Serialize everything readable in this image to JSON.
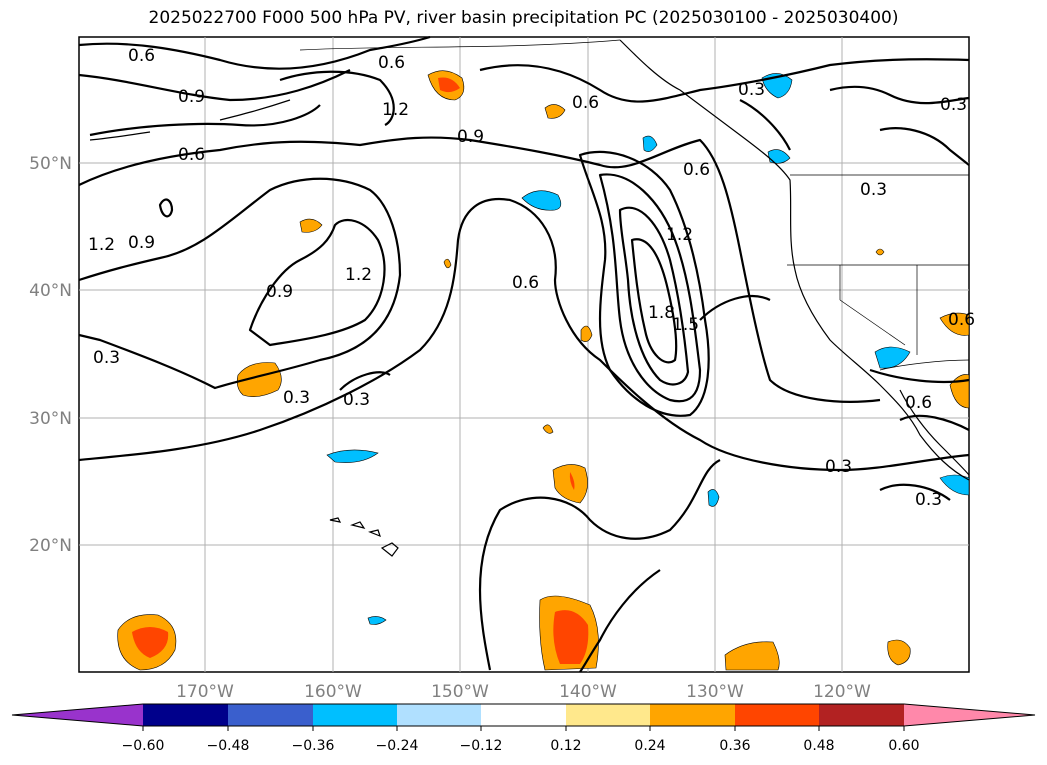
{
  "title": "2025022700 F000 500 hPa PV, river basin precipitation PC (2025030100 - 2025030400)",
  "map": {
    "lat_labels": [
      "50°N",
      "40°N",
      "30°N",
      "20°N"
    ],
    "lon_labels": [
      "170°W",
      "160°W",
      "150°W",
      "140°W",
      "130°W",
      "120°W"
    ],
    "contour_labels": [
      "0.6",
      "0.6",
      "0.9",
      "1.2",
      "0.6",
      "0.9",
      "0.6",
      "0.3",
      "0.6",
      "1.2",
      "0.9",
      "1.2",
      "0.9",
      "0.6",
      "1.2",
      "1.8",
      "1.5",
      "0.3",
      "0.3",
      "0.3",
      "0.3",
      "0.6",
      "0.6",
      "0.3",
      "0.3",
      "0.3"
    ],
    "colors": {
      "neg_060": "#9933cc",
      "neg_048": "#00008b",
      "neg_036": "#3a5fcd",
      "neg_024": "#00bfff",
      "neg_012": "#b0e0ff",
      "zero": "#ffffff",
      "pos_012": "#ffe88c",
      "pos_024": "#ffa500",
      "pos_036": "#ff4500",
      "pos_048": "#b22222",
      "pos_060": "#ff88aa"
    }
  },
  "colorbar": {
    "ticks": [
      "−0.60",
      "−0.48",
      "−0.36",
      "−0.24",
      "−0.12",
      "0.12",
      "0.24",
      "0.36",
      "0.48",
      "0.60"
    ],
    "segments": [
      "#9933cc",
      "#00008b",
      "#3a5fcd",
      "#00bfff",
      "#b0e0ff",
      "#ffffff",
      "#ffe88c",
      "#ffa500",
      "#ff4500",
      "#b22222",
      "#ff88aa"
    ]
  }
}
